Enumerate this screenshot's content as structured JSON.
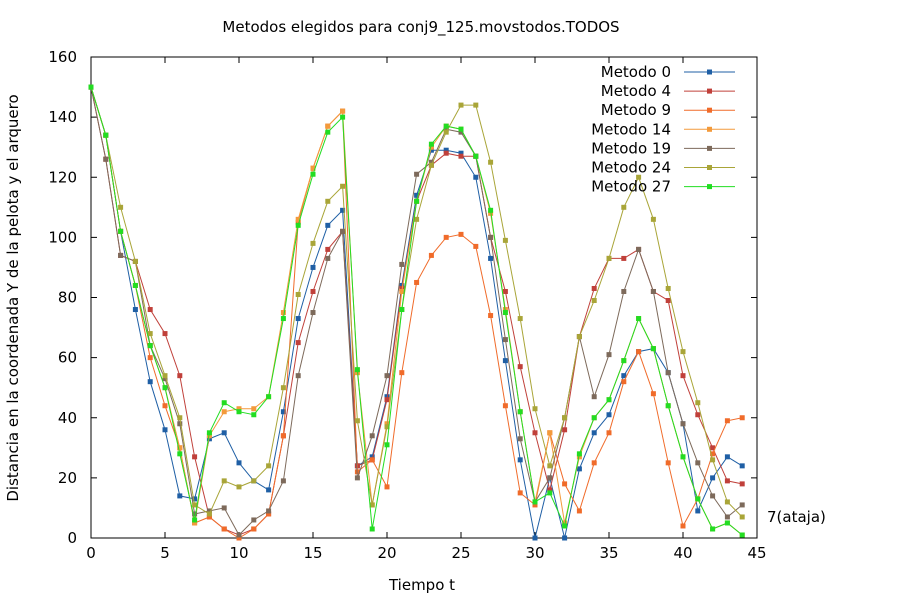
{
  "chart_data": {
    "type": "line",
    "title": "Metodos elegidos para conj9_125.movstodos.TODOS",
    "xlabel": "Tiempo t",
    "ylabel": "Distancia en la coordenada Y de la pelota y el arquero",
    "xlim": [
      0,
      45
    ],
    "ylim": [
      0,
      160
    ],
    "xticks": [
      0,
      5,
      10,
      15,
      20,
      25,
      30,
      35,
      40,
      45
    ],
    "yticks": [
      0,
      20,
      40,
      60,
      80,
      100,
      120,
      140,
      160
    ],
    "grid": false,
    "legend_position": "top-right",
    "annotation": "7(ataja)",
    "x": [
      0,
      1,
      2,
      3,
      4,
      5,
      6,
      7,
      8,
      9,
      10,
      11,
      12,
      13,
      14,
      15,
      16,
      17,
      18,
      19,
      20,
      21,
      22,
      23,
      24,
      25,
      26,
      27,
      28,
      29,
      30,
      31,
      32,
      33,
      34,
      35,
      36,
      37,
      38,
      39,
      40,
      41,
      42,
      43,
      44
    ],
    "series": [
      {
        "name": "Metodo 0",
        "color": "#1f5fa5",
        "values": [
          150,
          134,
          102,
          76,
          52,
          36,
          14,
          13,
          33,
          35,
          25,
          19,
          16,
          42,
          73,
          90,
          104,
          109,
          24,
          27,
          47,
          84,
          114,
          129,
          129,
          128,
          120,
          93,
          59,
          26,
          0,
          20,
          0,
          23,
          35,
          41,
          54,
          62,
          63,
          55,
          38,
          9,
          20,
          27,
          24
        ]
      },
      {
        "name": "Metodo 4",
        "color": "#c0403a",
        "values": [
          150,
          126,
          94,
          92,
          76,
          68,
          54,
          27,
          7,
          3,
          1,
          3,
          8,
          34,
          65,
          82,
          96,
          102,
          24,
          26,
          46,
          83,
          112,
          124,
          128,
          127,
          127,
          100,
          82,
          57,
          35,
          16,
          36,
          67,
          83,
          93,
          93,
          96,
          82,
          79,
          54,
          41,
          30,
          19,
          18
        ]
      },
      {
        "name": "Metodo 9",
        "color": "#f06b2a",
        "values": [
          150,
          134,
          102,
          84,
          60,
          44,
          30,
          5,
          7,
          3,
          0,
          3,
          8,
          34,
          105,
          123,
          137,
          142,
          22,
          26,
          17,
          55,
          85,
          94,
          100,
          101,
          97,
          74,
          44,
          15,
          11,
          35,
          18,
          9,
          25,
          35,
          52,
          62,
          48,
          25,
          4,
          13,
          28,
          39,
          40
        ]
      },
      {
        "name": "Metodo 14",
        "color": "#f39a3b",
        "values": [
          150,
          134,
          102,
          84,
          64,
          50,
          30,
          5,
          34,
          42,
          43,
          43,
          47,
          75,
          106,
          123,
          137,
          142,
          55,
          11,
          38,
          82,
          112,
          130,
          137,
          136,
          127,
          108,
          76,
          42,
          12,
          35,
          5,
          27,
          40,
          46,
          59,
          73,
          63,
          44,
          27,
          13,
          3,
          5,
          1
        ]
      },
      {
        "name": "Metodo 19",
        "color": "#7d6a5b",
        "values": [
          150,
          126,
          94,
          92,
          64,
          53,
          38,
          8,
          9,
          10,
          1,
          6,
          9,
          19,
          54,
          75,
          93,
          102,
          20,
          34,
          54,
          91,
          121,
          125,
          136,
          135,
          127,
          100,
          66,
          33,
          12,
          20,
          40,
          67,
          47,
          61,
          82,
          96,
          82,
          55,
          38,
          25,
          14,
          7,
          11
        ]
      },
      {
        "name": "Metodo 24",
        "color": "#a9a538",
        "values": [
          150,
          134,
          110,
          92,
          68,
          54,
          40,
          11,
          8,
          19,
          17,
          19,
          24,
          50,
          81,
          98,
          112,
          117,
          39,
          11,
          37,
          76,
          106,
          124,
          135,
          144,
          144,
          125,
          99,
          73,
          43,
          24,
          40,
          67,
          79,
          93,
          110,
          120,
          106,
          83,
          62,
          45,
          26,
          12,
          7
        ]
      },
      {
        "name": "Metodo 27",
        "color": "#22dd22",
        "values": [
          150,
          134,
          102,
          84,
          64,
          50,
          28,
          6,
          35,
          45,
          42,
          41,
          47,
          73,
          104,
          121,
          135,
          140,
          56,
          3,
          31,
          76,
          112,
          131,
          137,
          136,
          127,
          109,
          75,
          42,
          12,
          15,
          4,
          28,
          40,
          46,
          59,
          73,
          63,
          44,
          27,
          13,
          3,
          5,
          1
        ]
      }
    ]
  }
}
